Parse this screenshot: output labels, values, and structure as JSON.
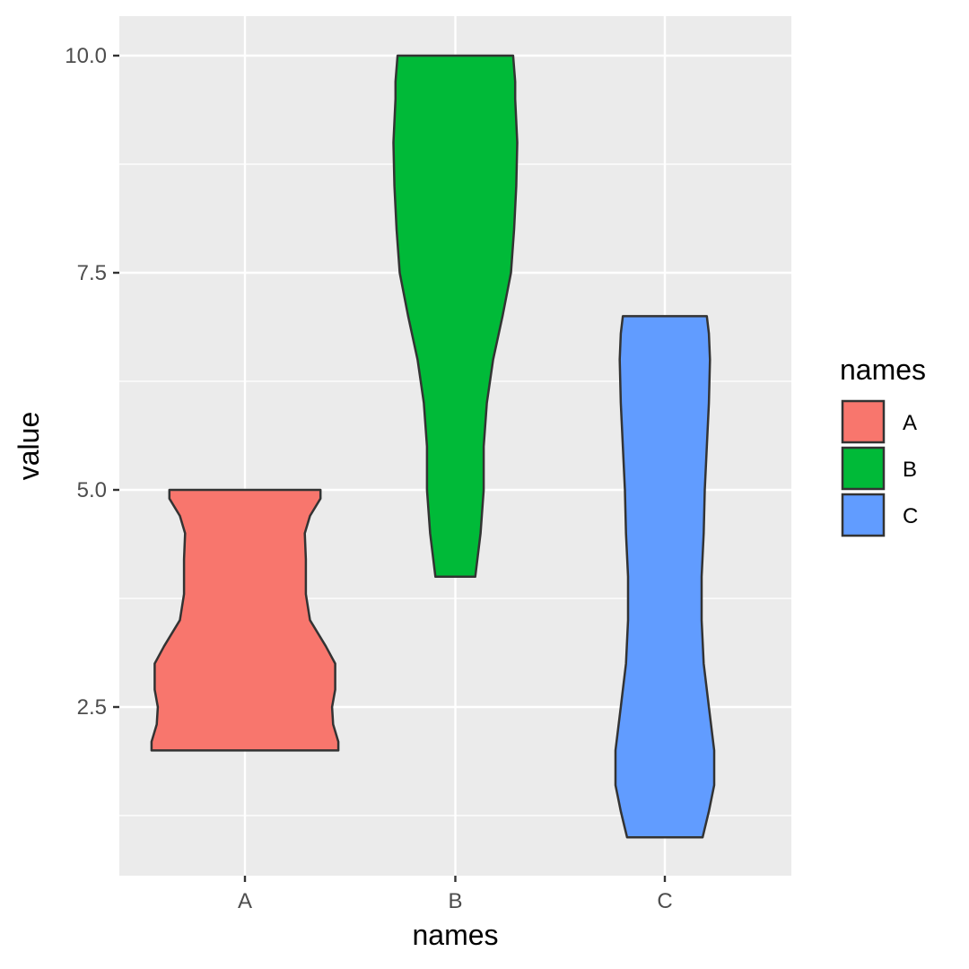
{
  "chart_data": {
    "type": "violin",
    "title": "",
    "xlabel": "names",
    "ylabel": "value",
    "categories": [
      "A",
      "B",
      "C"
    ],
    "ylim": [
      0.7,
      10.9
    ],
    "y_ticks": [
      2.5,
      5.0,
      7.5,
      10.0
    ],
    "y_tick_labels": [
      "2.5",
      "5.0",
      "7.5",
      "10.0"
    ],
    "grid": true,
    "legend": {
      "title": "names",
      "position": "right"
    },
    "series": [
      {
        "name": "A",
        "color": "#F8766D",
        "min": 2.0,
        "max": 5.0,
        "density_profile": [
          [
            2.0,
            0.89
          ],
          [
            2.1,
            0.89
          ],
          [
            2.3,
            0.84
          ],
          [
            2.5,
            0.83
          ],
          [
            2.7,
            0.86
          ],
          [
            3.0,
            0.86
          ],
          [
            3.2,
            0.77
          ],
          [
            3.5,
            0.62
          ],
          [
            3.8,
            0.58
          ],
          [
            4.0,
            0.58
          ],
          [
            4.2,
            0.58
          ],
          [
            4.5,
            0.57
          ],
          [
            4.7,
            0.62
          ],
          [
            4.9,
            0.72
          ],
          [
            5.0,
            0.72
          ]
        ]
      },
      {
        "name": "B",
        "color": "#00BA38",
        "min": 4.0,
        "max": 10.0,
        "density_profile": [
          [
            4.0,
            0.19
          ],
          [
            4.5,
            0.24
          ],
          [
            5.0,
            0.27
          ],
          [
            5.5,
            0.27
          ],
          [
            6.0,
            0.3
          ],
          [
            6.5,
            0.36
          ],
          [
            7.0,
            0.45
          ],
          [
            7.5,
            0.53
          ],
          [
            8.0,
            0.56
          ],
          [
            8.5,
            0.58
          ],
          [
            9.0,
            0.59
          ],
          [
            9.5,
            0.57
          ],
          [
            9.7,
            0.57
          ],
          [
            10.0,
            0.55
          ]
        ]
      },
      {
        "name": "C",
        "color": "#619CFF",
        "min": 1.0,
        "max": 7.0,
        "density_profile": [
          [
            1.0,
            0.36
          ],
          [
            1.3,
            0.42
          ],
          [
            1.6,
            0.47
          ],
          [
            2.0,
            0.47
          ],
          [
            2.5,
            0.42
          ],
          [
            3.0,
            0.37
          ],
          [
            3.5,
            0.35
          ],
          [
            4.0,
            0.35
          ],
          [
            4.5,
            0.37
          ],
          [
            5.0,
            0.38
          ],
          [
            5.5,
            0.4
          ],
          [
            6.0,
            0.42
          ],
          [
            6.5,
            0.43
          ],
          [
            6.8,
            0.42
          ],
          [
            7.0,
            0.4
          ]
        ]
      }
    ]
  }
}
